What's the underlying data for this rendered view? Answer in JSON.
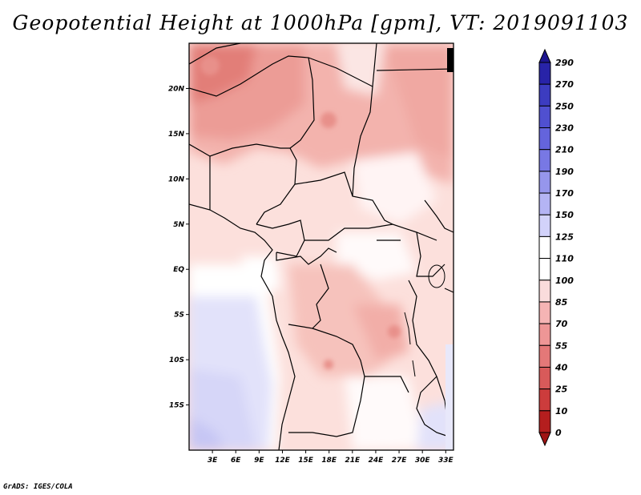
{
  "title": "Geopotential Height at 1000hPa [gpm], VT: 2019091103",
  "footer": "GrADS: IGES/COLA",
  "map": {
    "lat_range": [
      -20,
      25
    ],
    "lon_range": [
      0,
      34
    ],
    "lat_ticks": [
      {
        "label": "20N",
        "lat": 20
      },
      {
        "label": "15N",
        "lat": 15
      },
      {
        "label": "10N",
        "lat": 10
      },
      {
        "label": "5N",
        "lat": 5
      },
      {
        "label": "EQ",
        "lat": 0
      },
      {
        "label": "5S",
        "lat": -5
      },
      {
        "label": "10S",
        "lat": -10
      },
      {
        "label": "15S",
        "lat": -15
      }
    ],
    "lon_ticks": [
      {
        "label": "3E",
        "lon": 3
      },
      {
        "label": "6E",
        "lon": 6
      },
      {
        "label": "9E",
        "lon": 9
      },
      {
        "label": "12E",
        "lon": 12
      },
      {
        "label": "15E",
        "lon": 15
      },
      {
        "label": "18E",
        "lon": 18
      },
      {
        "label": "21E",
        "lon": 21
      },
      {
        "label": "24E",
        "lon": 24
      },
      {
        "label": "27E",
        "lon": 27
      },
      {
        "label": "30E",
        "lon": 30
      },
      {
        "label": "33E",
        "lon": 33
      }
    ]
  },
  "colorbar": {
    "labels": [
      "290",
      "270",
      "250",
      "230",
      "210",
      "190",
      "170",
      "150",
      "125",
      "110",
      "100",
      "85",
      "70",
      "55",
      "40",
      "25",
      "10",
      "0"
    ],
    "colors": [
      "#1e1690",
      "#2823a8",
      "#3c3cc0",
      "#5050d0",
      "#6464dc",
      "#7878e4",
      "#9696ec",
      "#b4b4f4",
      "#d2d2fa",
      "#ffffff",
      "#ffffff",
      "#fadcdc",
      "#f5b4b4",
      "#ee9696",
      "#e47878",
      "#d85a5a",
      "#cc3c3c",
      "#b41e1e",
      "#a01414"
    ]
  }
}
